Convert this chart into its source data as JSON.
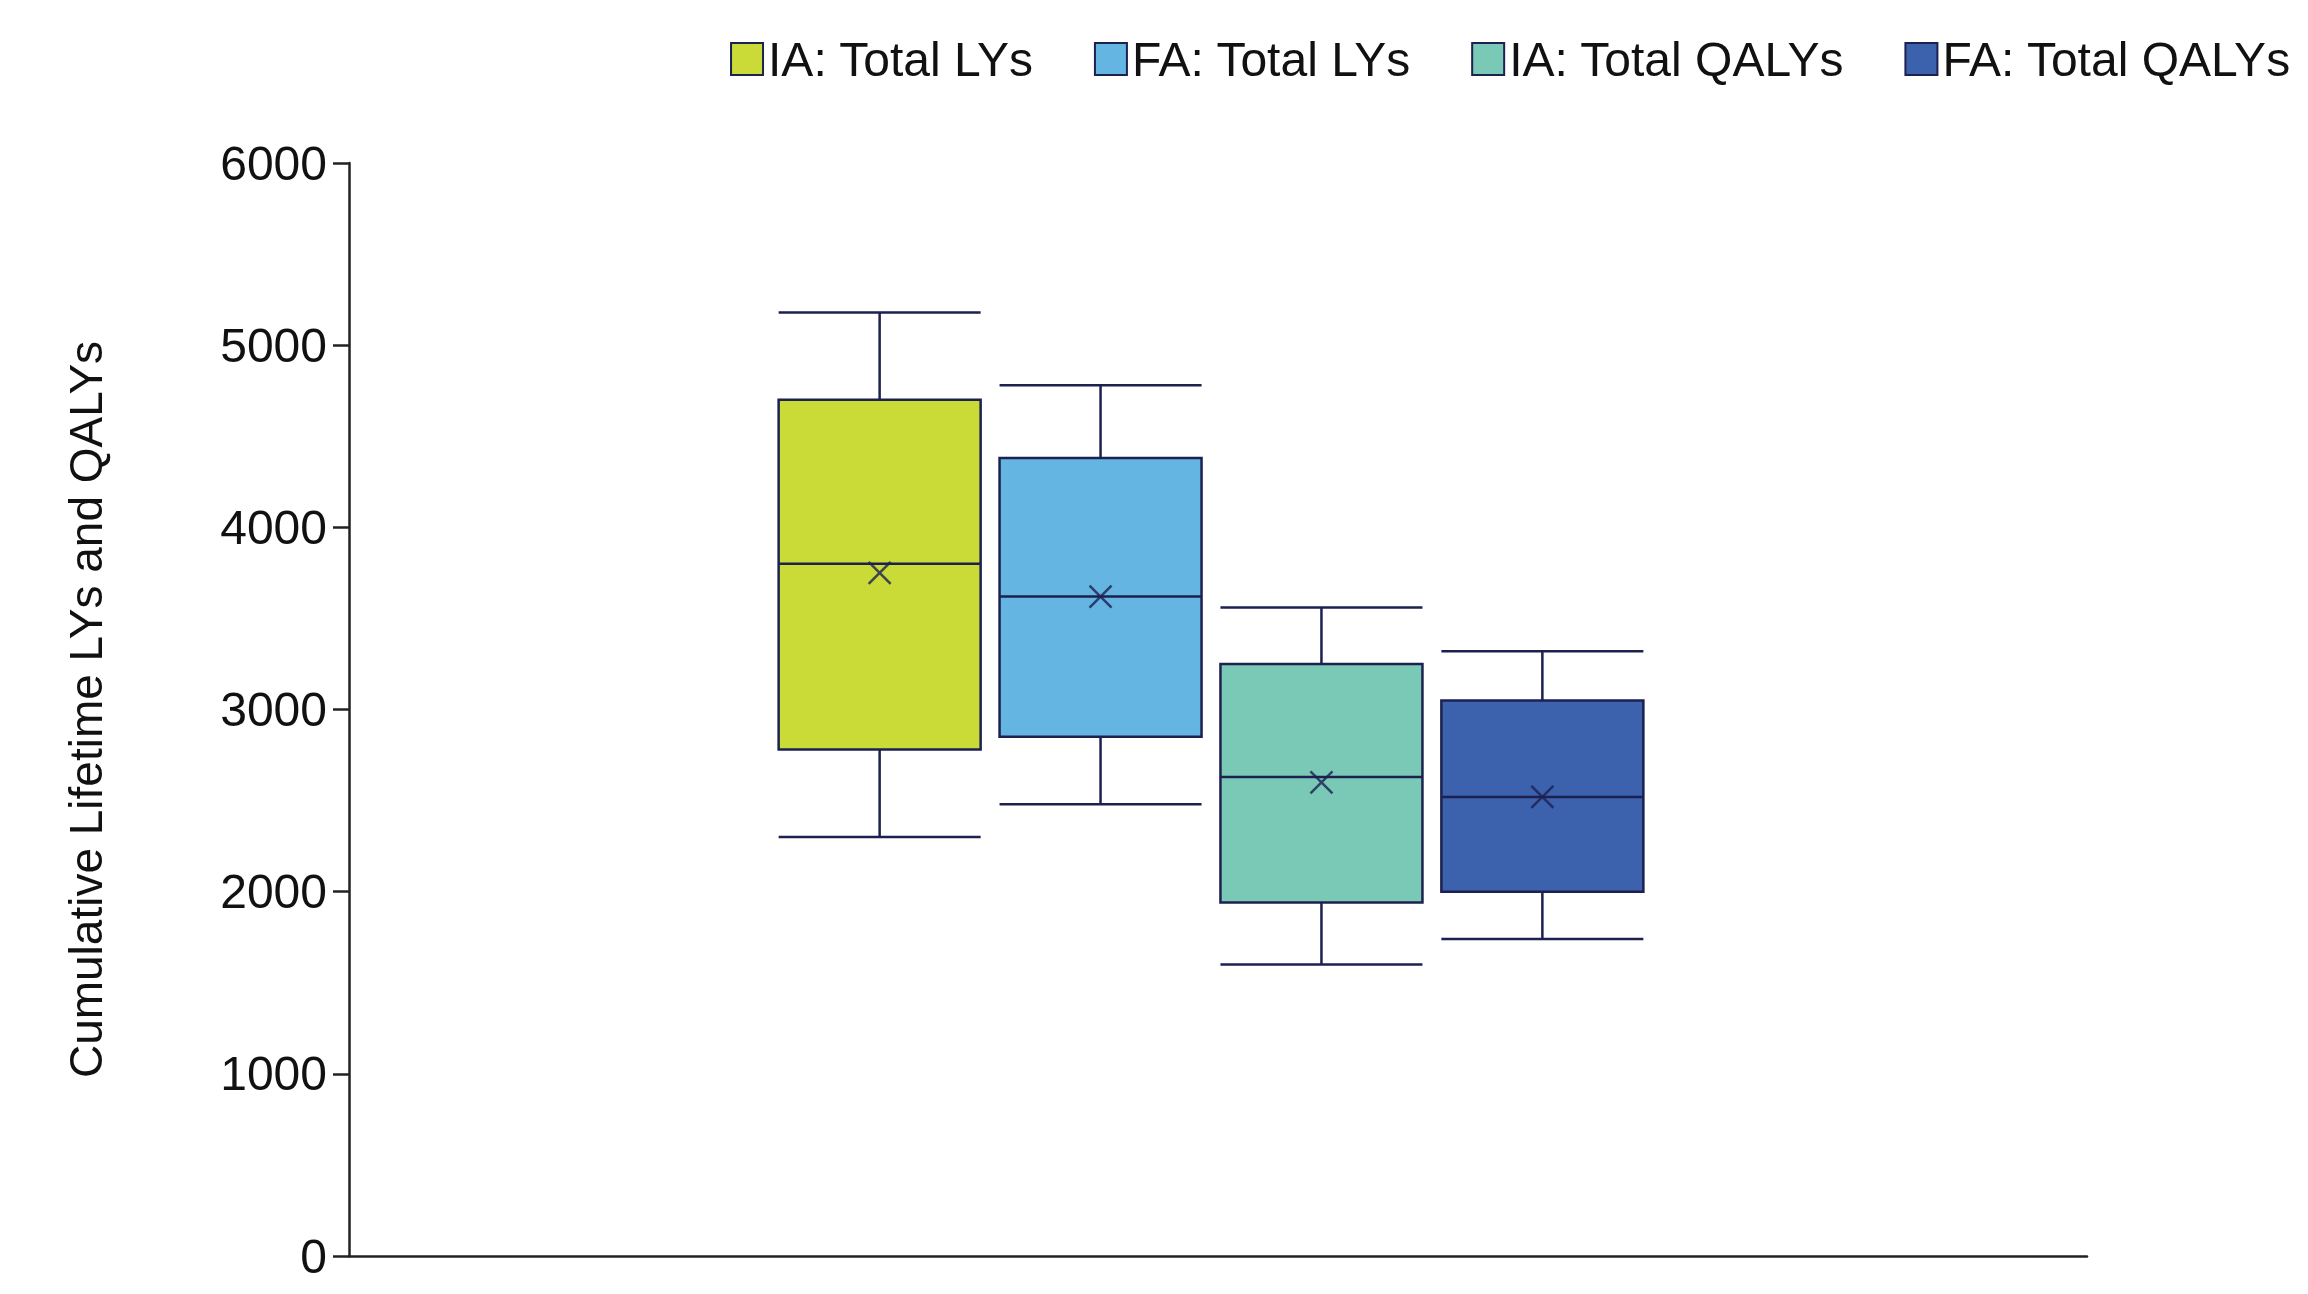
{
  "chart_data": {
    "type": "box",
    "ylabel": "Cumulative Lifetime LYs and QALYs",
    "categories": [
      null
    ],
    "ylim": [
      0,
      6000
    ],
    "yticks": [
      0,
      1000,
      2000,
      3000,
      4000,
      5000,
      6000
    ],
    "grid": false,
    "legend": "top right",
    "series": [
      {
        "name": "IA: Total LYs",
        "color": "#cadb37",
        "boxes": [
          {
            "low": 2300,
            "q1": 2780,
            "median": 3800,
            "q3": 4700,
            "high": 5180,
            "mean": 3750
          }
        ]
      },
      {
        "name": "FA: Total LYs",
        "color": "#65b5e3",
        "boxes": [
          {
            "low": 2480,
            "q1": 2850,
            "median": 3620,
            "q3": 4380,
            "high": 4780,
            "mean": 3620
          }
        ]
      },
      {
        "name": "IA: Total QALYs",
        "color": "#79c9b6",
        "boxes": [
          {
            "low": 1600,
            "q1": 1940,
            "median": 2630,
            "q3": 3250,
            "high": 3560,
            "mean": 2600
          }
        ]
      },
      {
        "name": "FA: Total QALYs",
        "color": "#3c61ad",
        "boxes": [
          {
            "low": 1740,
            "q1": 2000,
            "median": 2520,
            "q3": 3050,
            "high": 3320,
            "mean": 2520
          }
        ]
      }
    ]
  }
}
